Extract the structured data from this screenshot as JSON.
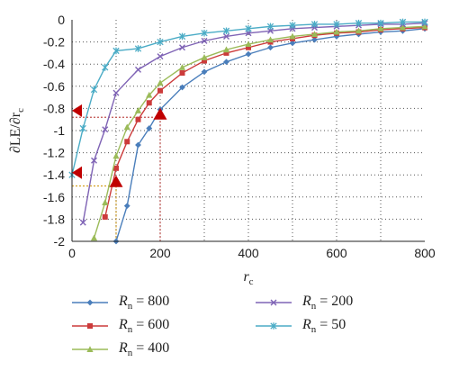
{
  "chart_data": {
    "type": "line",
    "xlabel_main": "r",
    "xlabel_sub": "c",
    "ylabel_main": "∂LE/∂r",
    "ylabel_sub": "c",
    "xlim": [
      0,
      800
    ],
    "ylim": [
      -2,
      0
    ],
    "x_ticks": [
      "0",
      "200",
      "400",
      "600",
      "800"
    ],
    "y_ticks": [
      "0",
      "-0.2",
      "-0.4",
      "-0.6",
      "-0.8",
      "-1",
      "-1.2",
      "-1.4",
      "-1.6",
      "-1.8",
      "-2"
    ],
    "grid": "dotted",
    "legend_position": "bottom",
    "series": [
      {
        "name": "R_n = 800",
        "name_main": "R",
        "name_sub": "n",
        "name_rest": " = 800",
        "color": "#4a7ebb",
        "marker": "diamond",
        "x": [
          100,
          125,
          150,
          175,
          200,
          250,
          300,
          350,
          400,
          450,
          500,
          550,
          600,
          650,
          700,
          750,
          800
        ],
        "y": [
          -2.0,
          -1.68,
          -1.13,
          -0.98,
          -0.81,
          -0.61,
          -0.47,
          -0.38,
          -0.31,
          -0.25,
          -0.21,
          -0.18,
          -0.15,
          -0.13,
          -0.11,
          -0.1,
          -0.08
        ]
      },
      {
        "name": "R_n = 600",
        "name_main": "R",
        "name_sub": "n",
        "name_rest": " = 600",
        "color": "#cc3b3b",
        "marker": "square",
        "x": [
          75,
          100,
          125,
          150,
          175,
          200,
          250,
          300,
          350,
          400,
          450,
          500,
          550,
          600,
          650,
          700,
          750,
          800
        ],
        "y": [
          -1.78,
          -1.34,
          -1.1,
          -0.9,
          -0.75,
          -0.64,
          -0.48,
          -0.37,
          -0.3,
          -0.25,
          -0.2,
          -0.17,
          -0.14,
          -0.12,
          -0.11,
          -0.09,
          -0.08,
          -0.07
        ]
      },
      {
        "name": "R_n = 400",
        "name_main": "R",
        "name_sub": "n",
        "name_rest": " = 400",
        "color": "#9bbb59",
        "marker": "triangle",
        "x": [
          50,
          75,
          100,
          125,
          150,
          175,
          200,
          250,
          300,
          350,
          400,
          450,
          500,
          550,
          600,
          650,
          700,
          750,
          800
        ],
        "y": [
          -1.97,
          -1.65,
          -1.23,
          -0.97,
          -0.82,
          -0.68,
          -0.57,
          -0.43,
          -0.34,
          -0.27,
          -0.22,
          -0.18,
          -0.15,
          -0.13,
          -0.11,
          -0.1,
          -0.08,
          -0.07,
          -0.06
        ]
      },
      {
        "name": "R_n = 200",
        "name_main": "R",
        "name_sub": "n",
        "name_rest": " = 200",
        "color": "#7f63b5",
        "marker": "x",
        "x": [
          25,
          50,
          75,
          100,
          150,
          200,
          250,
          300,
          350,
          400,
          450,
          500,
          550,
          600,
          650,
          700,
          750,
          800
        ],
        "y": [
          -1.83,
          -1.27,
          -0.99,
          -0.66,
          -0.45,
          -0.33,
          -0.25,
          -0.19,
          -0.15,
          -0.12,
          -0.1,
          -0.08,
          -0.07,
          -0.06,
          -0.05,
          -0.04,
          -0.04,
          -0.03
        ]
      },
      {
        "name": "R_n = 50",
        "name_main": "R",
        "name_sub": "n",
        "name_rest": " = 50",
        "color": "#4bacc6",
        "marker": "star",
        "x": [
          0,
          25,
          50,
          75,
          100,
          150,
          200,
          250,
          300,
          350,
          400,
          450,
          500,
          550,
          600,
          650,
          700,
          750,
          800
        ],
        "y": [
          -1.4,
          -0.98,
          -0.63,
          -0.43,
          -0.28,
          -0.26,
          -0.2,
          -0.15,
          -0.12,
          -0.1,
          -0.08,
          -0.06,
          -0.05,
          -0.04,
          -0.04,
          -0.03,
          -0.03,
          -0.02,
          -0.02
        ]
      }
    ],
    "guides": [
      {
        "x": 100,
        "y": -1.5,
        "color": "#d4a020"
      },
      {
        "x": 200,
        "y": -0.88,
        "color": "#c0504d"
      }
    ],
    "highlight_markers": [
      {
        "shape": "triangle-left",
        "x": 0,
        "y": -0.82
      },
      {
        "shape": "triangle-left",
        "x": 0,
        "y": -1.38
      },
      {
        "shape": "triangle-up",
        "x": 100,
        "y": -1.47
      },
      {
        "shape": "triangle-up",
        "x": 200,
        "y": -0.86
      }
    ]
  }
}
